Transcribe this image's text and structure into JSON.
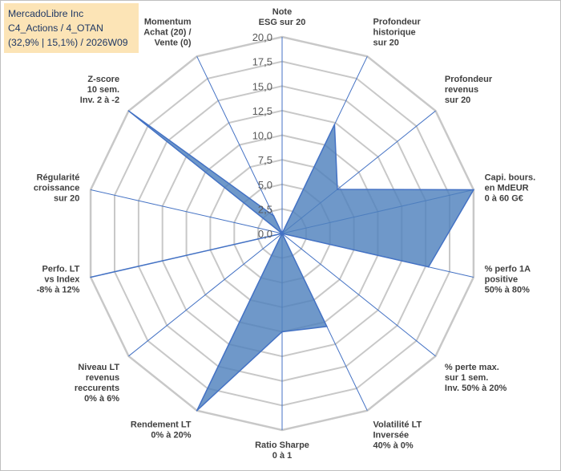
{
  "header": {
    "company": "MercadoLibre Inc",
    "category": "C4_Actions / 4_OTAN",
    "summary": "(32,9% | 15,1%) / 2026W09"
  },
  "chart_data": {
    "type": "radar",
    "title": "MercadoLibre Inc",
    "axis_min": 0,
    "axis_max": 20,
    "tick_step": 2.5,
    "tick_labels": [
      "0,0",
      "2,5",
      "5,0",
      "7,5",
      "10,0",
      "12,5",
      "15,0",
      "17,5",
      "20,0"
    ],
    "categories": [
      [
        "Note",
        "ESG sur 20"
      ],
      [
        "Profondeur",
        "historique",
        "sur 20"
      ],
      [
        "Profondeur",
        "revenus",
        "sur 20"
      ],
      [
        "Capi. bours.",
        "en MdEUR",
        "0 à 60 G€"
      ],
      [
        "% perfo 1A",
        "positive",
        "50% à 80%"
      ],
      [
        "% perte max.",
        "sur 1 sem.",
        "Inv. 50% à 20%"
      ],
      [
        "Volatilité LT",
        "Inversée",
        "40% à 0%"
      ],
      [
        "Ratio Sharpe",
        "0 à 1"
      ],
      [
        "Rendement LT",
        "0% à 20%"
      ],
      [
        "Niveau LT",
        "revenus",
        "reccurents",
        "0% à 6%"
      ],
      [
        "Perfo. LT",
        "vs Index",
        "-8% à 12%"
      ],
      [
        "Régularité",
        "croissance",
        "sur 20"
      ],
      [
        "Z-score",
        "10 sem.",
        "Inv. 2 à -2"
      ],
      [
        "Momentum",
        "Achat (20) /",
        "Vente (0)"
      ]
    ],
    "series": [
      {
        "name": "MercadoLibre Inc",
        "values": [
          0,
          12.3,
          7.2,
          20,
          15.3,
          0,
          10.5,
          10,
          20,
          0,
          20,
          0,
          20,
          2
        ],
        "color": "#4f81bd"
      }
    ],
    "grid": true
  }
}
